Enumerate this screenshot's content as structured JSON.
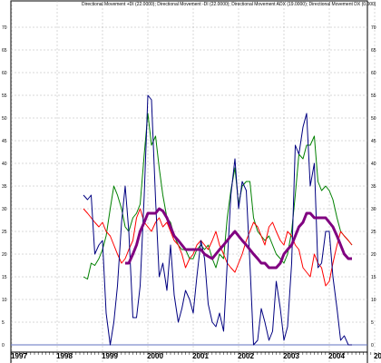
{
  "chart_data": {
    "type": "line",
    "title": "Directional Movement +DI (22.0000); Directional Movement -DI (22.0000); Directional Movement ADX (19.0000); Directional Movement DX (0.000)",
    "ylim": [
      -6,
      74
    ],
    "yticks": [
      -5,
      0,
      5,
      10,
      15,
      20,
      25,
      30,
      35,
      40,
      45,
      50,
      55,
      60,
      65,
      70
    ],
    "xlim": [
      1997.0,
      2005.7
    ],
    "xticks": [
      {
        "label": "1997",
        "x": 1997
      },
      {
        "label": "1998",
        "x": 1998
      },
      {
        "label": "1999",
        "x": 1999
      },
      {
        "label": "2000",
        "x": 2000
      },
      {
        "label": "2001",
        "x": 2001
      },
      {
        "label": "2002",
        "x": 2002
      },
      {
        "label": "2003",
        "x": 2003
      },
      {
        "label": "2004",
        "x": 2004
      },
      {
        "label": "2005",
        "x": 2005
      }
    ],
    "grid": true,
    "baseline": 0,
    "colors": {
      "plus_di": "#008000",
      "minus_di": "#ff0000",
      "adx": "#800080",
      "dx": "#000080",
      "baseline": "#6070c0",
      "grid": "#b0b0b0",
      "frame": "#000000"
    },
    "series": [
      {
        "key": "plus_di",
        "points": [
          [
            1998.58,
            15
          ],
          [
            1998.67,
            14.5
          ],
          [
            1998.75,
            18
          ],
          [
            1998.83,
            17.5
          ],
          [
            1998.92,
            19
          ],
          [
            1999.0,
            21
          ],
          [
            1999.08,
            24
          ],
          [
            1999.17,
            30
          ],
          [
            1999.25,
            35
          ],
          [
            1999.33,
            33
          ],
          [
            1999.42,
            30
          ],
          [
            1999.5,
            26
          ],
          [
            1999.58,
            25
          ],
          [
            1999.67,
            28
          ],
          [
            1999.75,
            29
          ],
          [
            1999.83,
            31
          ],
          [
            1999.92,
            42
          ],
          [
            2000.0,
            51
          ],
          [
            2000.08,
            44
          ],
          [
            2000.17,
            46
          ],
          [
            2000.25,
            39
          ],
          [
            2000.33,
            33
          ],
          [
            2000.42,
            28
          ],
          [
            2000.5,
            27
          ],
          [
            2000.58,
            24
          ],
          [
            2000.67,
            22
          ],
          [
            2000.75,
            21
          ],
          [
            2000.83,
            21
          ],
          [
            2000.92,
            19
          ],
          [
            2001.0,
            19
          ],
          [
            2001.08,
            21
          ],
          [
            2001.17,
            22
          ],
          [
            2001.25,
            21
          ],
          [
            2001.33,
            22
          ],
          [
            2001.42,
            19
          ],
          [
            2001.5,
            17
          ],
          [
            2001.58,
            20
          ],
          [
            2001.67,
            19
          ],
          [
            2001.75,
            28
          ],
          [
            2001.83,
            34
          ],
          [
            2001.92,
            39
          ],
          [
            2002.0,
            31
          ],
          [
            2002.08,
            35
          ],
          [
            2002.17,
            36
          ],
          [
            2002.25,
            36
          ],
          [
            2002.33,
            28
          ],
          [
            2002.42,
            25
          ],
          [
            2002.5,
            24
          ],
          [
            2002.58,
            23
          ],
          [
            2002.67,
            24
          ],
          [
            2002.75,
            22
          ],
          [
            2002.83,
            20
          ],
          [
            2002.92,
            19
          ],
          [
            2003.0,
            18
          ],
          [
            2003.08,
            20
          ],
          [
            2003.17,
            25
          ],
          [
            2003.25,
            33
          ],
          [
            2003.33,
            42
          ],
          [
            2003.42,
            41
          ],
          [
            2003.5,
            44
          ],
          [
            2003.58,
            44
          ],
          [
            2003.67,
            46
          ],
          [
            2003.75,
            36
          ],
          [
            2003.83,
            34
          ],
          [
            2003.92,
            35
          ],
          [
            2004.0,
            34
          ],
          [
            2004.08,
            32
          ],
          [
            2004.17,
            28
          ],
          [
            2004.25,
            25
          ],
          [
            2004.33,
            24
          ],
          [
            2004.42,
            23
          ],
          [
            2004.5,
            22
          ]
        ]
      },
      {
        "key": "minus_di",
        "points": [
          [
            1998.58,
            30
          ],
          [
            1998.67,
            29
          ],
          [
            1998.75,
            28
          ],
          [
            1998.83,
            27
          ],
          [
            1998.92,
            26
          ],
          [
            1999.0,
            27
          ],
          [
            1999.08,
            25
          ],
          [
            1999.17,
            24
          ],
          [
            1999.25,
            22
          ],
          [
            1999.33,
            20
          ],
          [
            1999.42,
            18
          ],
          [
            1999.5,
            19
          ],
          [
            1999.58,
            21
          ],
          [
            1999.67,
            23
          ],
          [
            1999.75,
            28
          ],
          [
            1999.83,
            30
          ],
          [
            1999.92,
            27
          ],
          [
            2000.0,
            26
          ],
          [
            2000.08,
            25
          ],
          [
            2000.17,
            27
          ],
          [
            2000.25,
            28
          ],
          [
            2000.33,
            26
          ],
          [
            2000.42,
            27
          ],
          [
            2000.5,
            25
          ],
          [
            2000.58,
            23
          ],
          [
            2000.67,
            22
          ],
          [
            2000.75,
            20
          ],
          [
            2000.83,
            17
          ],
          [
            2000.92,
            19
          ],
          [
            2001.0,
            20
          ],
          [
            2001.08,
            22
          ],
          [
            2001.17,
            23
          ],
          [
            2001.25,
            22
          ],
          [
            2001.33,
            21
          ],
          [
            2001.42,
            23
          ],
          [
            2001.5,
            25
          ],
          [
            2001.58,
            22
          ],
          [
            2001.67,
            20
          ],
          [
            2001.75,
            18
          ],
          [
            2001.83,
            17
          ],
          [
            2001.92,
            16
          ],
          [
            2002.0,
            18
          ],
          [
            2002.08,
            20
          ],
          [
            2002.17,
            23
          ],
          [
            2002.25,
            25
          ],
          [
            2002.33,
            27
          ],
          [
            2002.42,
            26
          ],
          [
            2002.5,
            24
          ],
          [
            2002.58,
            22
          ],
          [
            2002.67,
            26
          ],
          [
            2002.75,
            27
          ],
          [
            2002.83,
            25
          ],
          [
            2002.92,
            23
          ],
          [
            2003.0,
            22
          ],
          [
            2003.08,
            25
          ],
          [
            2003.17,
            24
          ],
          [
            2003.25,
            22
          ],
          [
            2003.33,
            21
          ],
          [
            2003.42,
            17
          ],
          [
            2003.5,
            16
          ],
          [
            2003.58,
            15
          ],
          [
            2003.67,
            20
          ],
          [
            2003.75,
            18
          ],
          [
            2003.83,
            17
          ],
          [
            2003.92,
            13
          ],
          [
            2004.0,
            14
          ],
          [
            2004.08,
            18
          ],
          [
            2004.17,
            22
          ],
          [
            2004.25,
            25
          ],
          [
            2004.33,
            24
          ],
          [
            2004.42,
            23
          ],
          [
            2004.5,
            22
          ]
        ]
      },
      {
        "key": "dx",
        "points": [
          [
            1998.58,
            33
          ],
          [
            1998.67,
            32
          ],
          [
            1998.75,
            33
          ],
          [
            1998.83,
            20
          ],
          [
            1998.92,
            22
          ],
          [
            1999.0,
            23
          ],
          [
            1999.08,
            7
          ],
          [
            1999.17,
            0
          ],
          [
            1999.25,
            5
          ],
          [
            1999.33,
            13
          ],
          [
            1999.42,
            27
          ],
          [
            1999.5,
            35
          ],
          [
            1999.58,
            25
          ],
          [
            1999.67,
            6
          ],
          [
            1999.75,
            6
          ],
          [
            1999.83,
            13
          ],
          [
            1999.92,
            33
          ],
          [
            2000.0,
            55
          ],
          [
            2000.08,
            54
          ],
          [
            2000.17,
            32
          ],
          [
            2000.25,
            15
          ],
          [
            2000.33,
            18
          ],
          [
            2000.42,
            12
          ],
          [
            2000.5,
            22
          ],
          [
            2000.58,
            11
          ],
          [
            2000.67,
            5
          ],
          [
            2000.75,
            8
          ],
          [
            2000.83,
            12
          ],
          [
            2000.92,
            10
          ],
          [
            2001.0,
            7
          ],
          [
            2001.08,
            15
          ],
          [
            2001.17,
            23
          ],
          [
            2001.25,
            19
          ],
          [
            2001.33,
            9
          ],
          [
            2001.42,
            5
          ],
          [
            2001.5,
            4
          ],
          [
            2001.58,
            7
          ],
          [
            2001.67,
            3
          ],
          [
            2001.75,
            18
          ],
          [
            2001.83,
            33
          ],
          [
            2001.92,
            41
          ],
          [
            2002.0,
            30
          ],
          [
            2002.08,
            36
          ],
          [
            2002.17,
            34
          ],
          [
            2002.25,
            18
          ],
          [
            2002.33,
            0
          ],
          [
            2002.42,
            1
          ],
          [
            2002.5,
            8
          ],
          [
            2002.58,
            5
          ],
          [
            2002.67,
            1
          ],
          [
            2002.75,
            3
          ],
          [
            2002.83,
            14
          ],
          [
            2002.92,
            8
          ],
          [
            2003.0,
            1
          ],
          [
            2003.08,
            4
          ],
          [
            2003.17,
            18
          ],
          [
            2003.25,
            44
          ],
          [
            2003.33,
            42
          ],
          [
            2003.42,
            48
          ],
          [
            2003.5,
            51
          ],
          [
            2003.58,
            35
          ],
          [
            2003.67,
            40
          ],
          [
            2003.75,
            17
          ],
          [
            2003.83,
            18
          ],
          [
            2003.92,
            25
          ],
          [
            2004.0,
            25
          ],
          [
            2004.08,
            15
          ],
          [
            2004.17,
            8
          ],
          [
            2004.25,
            1
          ],
          [
            2004.33,
            2
          ],
          [
            2004.42,
            0
          ],
          [
            2004.5,
            0
          ]
        ]
      },
      {
        "key": "adx",
        "points": [
          [
            1999.5,
            18
          ],
          [
            1999.58,
            18
          ],
          [
            1999.67,
            20
          ],
          [
            1999.75,
            22
          ],
          [
            1999.83,
            25
          ],
          [
            1999.92,
            27
          ],
          [
            2000.0,
            29
          ],
          [
            2000.08,
            29
          ],
          [
            2000.17,
            29
          ],
          [
            2000.25,
            30
          ],
          [
            2000.33,
            29.5
          ],
          [
            2000.42,
            28
          ],
          [
            2000.5,
            26
          ],
          [
            2000.58,
            24
          ],
          [
            2000.67,
            23
          ],
          [
            2000.75,
            22
          ],
          [
            2000.83,
            21
          ],
          [
            2000.92,
            21
          ],
          [
            2001.0,
            21
          ],
          [
            2001.08,
            21
          ],
          [
            2001.17,
            21
          ],
          [
            2001.25,
            20
          ],
          [
            2001.33,
            19.5
          ],
          [
            2001.42,
            19
          ],
          [
            2001.5,
            20
          ],
          [
            2001.58,
            21
          ],
          [
            2001.67,
            22
          ],
          [
            2001.75,
            23
          ],
          [
            2001.83,
            24
          ],
          [
            2001.92,
            25
          ],
          [
            2002.0,
            24
          ],
          [
            2002.08,
            23
          ],
          [
            2002.17,
            22
          ],
          [
            2002.25,
            21
          ],
          [
            2002.33,
            20
          ],
          [
            2002.42,
            19
          ],
          [
            2002.5,
            18
          ],
          [
            2002.58,
            18
          ],
          [
            2002.67,
            17
          ],
          [
            2002.75,
            17
          ],
          [
            2002.83,
            17
          ],
          [
            2002.92,
            18
          ],
          [
            2003.0,
            20
          ],
          [
            2003.08,
            21
          ],
          [
            2003.17,
            22
          ],
          [
            2003.25,
            24
          ],
          [
            2003.33,
            26
          ],
          [
            2003.42,
            27
          ],
          [
            2003.5,
            29
          ],
          [
            2003.58,
            29
          ],
          [
            2003.67,
            28
          ],
          [
            2003.75,
            28
          ],
          [
            2003.83,
            28
          ],
          [
            2003.92,
            28
          ],
          [
            2004.0,
            27
          ],
          [
            2004.08,
            26
          ],
          [
            2004.17,
            24
          ],
          [
            2004.25,
            22
          ],
          [
            2004.33,
            20
          ],
          [
            2004.42,
            19
          ],
          [
            2004.5,
            19
          ]
        ]
      }
    ]
  }
}
